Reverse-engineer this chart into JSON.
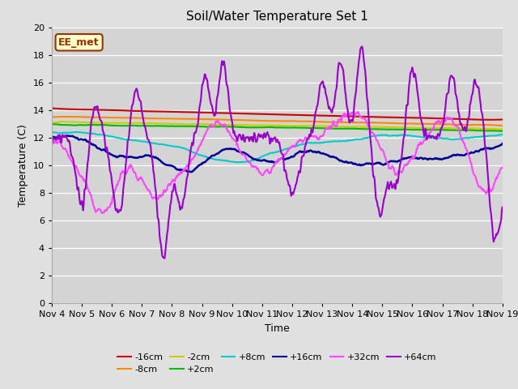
{
  "title": "Soil/Water Temperature Set 1",
  "xlabel": "Time",
  "ylabel": "Temperature (C)",
  "ylim": [
    0,
    20
  ],
  "xlim": [
    0,
    15
  ],
  "background_color": "#e0e0e0",
  "plot_bg_color": "#d4d4d4",
  "x_tick_labels": [
    "Nov 4",
    "Nov 5",
    "Nov 6",
    "Nov 7",
    "Nov 8",
    "Nov 9",
    "Nov 10",
    "Nov 11",
    "Nov 12",
    "Nov 13",
    "Nov 14",
    "Nov 15",
    "Nov 16",
    "Nov 17",
    "Nov 18",
    "Nov 19"
  ],
  "series_order": [
    "-16cm",
    "-8cm",
    "-2cm",
    "+2cm",
    "+8cm",
    "+16cm",
    "+32cm",
    "+64cm"
  ],
  "series": {
    "-16cm": {
      "color": "#cc0000",
      "lw": 1.5
    },
    "-8cm": {
      "color": "#ff8800",
      "lw": 1.5
    },
    "-2cm": {
      "color": "#cccc00",
      "lw": 1.5
    },
    "+2cm": {
      "color": "#00bb00",
      "lw": 1.5
    },
    "+8cm": {
      "color": "#00cccc",
      "lw": 1.5
    },
    "+16cm": {
      "color": "#000099",
      "lw": 1.8
    },
    "+32cm": {
      "color": "#ff44ff",
      "lw": 1.5
    },
    "+64cm": {
      "color": "#9900cc",
      "lw": 1.5
    }
  },
  "annotation_text": "EE_met",
  "annotation_bg": "#ffffcc",
  "annotation_border": "#993300"
}
